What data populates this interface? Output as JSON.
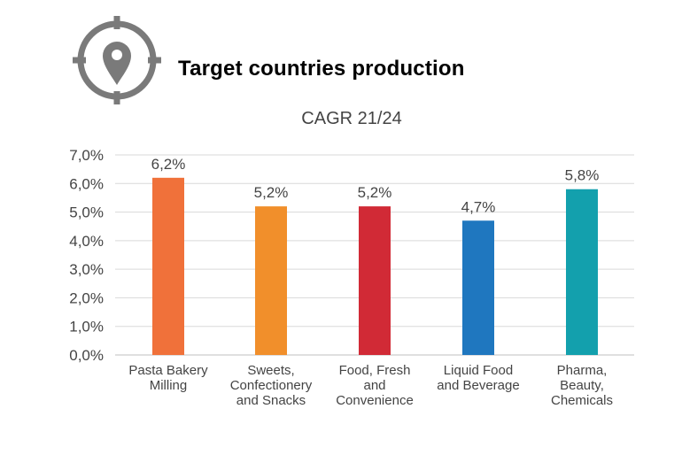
{
  "header": {
    "title": "Target countries production",
    "icon": "location-target-icon"
  },
  "colors": {
    "icon": "#7a7a7a",
    "grid": "#d9d9d9",
    "axis": "#bfbfbf",
    "text": "#444444"
  },
  "chart_data": {
    "type": "bar",
    "title": "CAGR 21/24",
    "xlabel": "",
    "ylabel": "",
    "ylim": [
      0,
      7
    ],
    "yticks": [
      "0,0%",
      "1,0%",
      "2,0%",
      "3,0%",
      "4,0%",
      "5,0%",
      "6,0%",
      "7,0%"
    ],
    "grid": true,
    "legend": "none",
    "categories": [
      [
        "Pasta Bakery",
        "Milling"
      ],
      [
        "Sweets,",
        "Confectionery",
        "and Snacks"
      ],
      [
        "Food, Fresh",
        "and",
        "Convenience"
      ],
      [
        "Liquid Food",
        "and Beverage"
      ],
      [
        "Pharma,",
        "Beauty,",
        "Chemicals"
      ]
    ],
    "values": [
      6.2,
      5.2,
      5.2,
      4.7,
      5.8
    ],
    "data_labels": [
      "6,2%",
      "5,2%",
      "5,2%",
      "4,7%",
      "5,8%"
    ],
    "bar_colors": [
      "#f0713a",
      "#f18f2b",
      "#d12a36",
      "#1f77bf",
      "#13a0ad"
    ]
  }
}
